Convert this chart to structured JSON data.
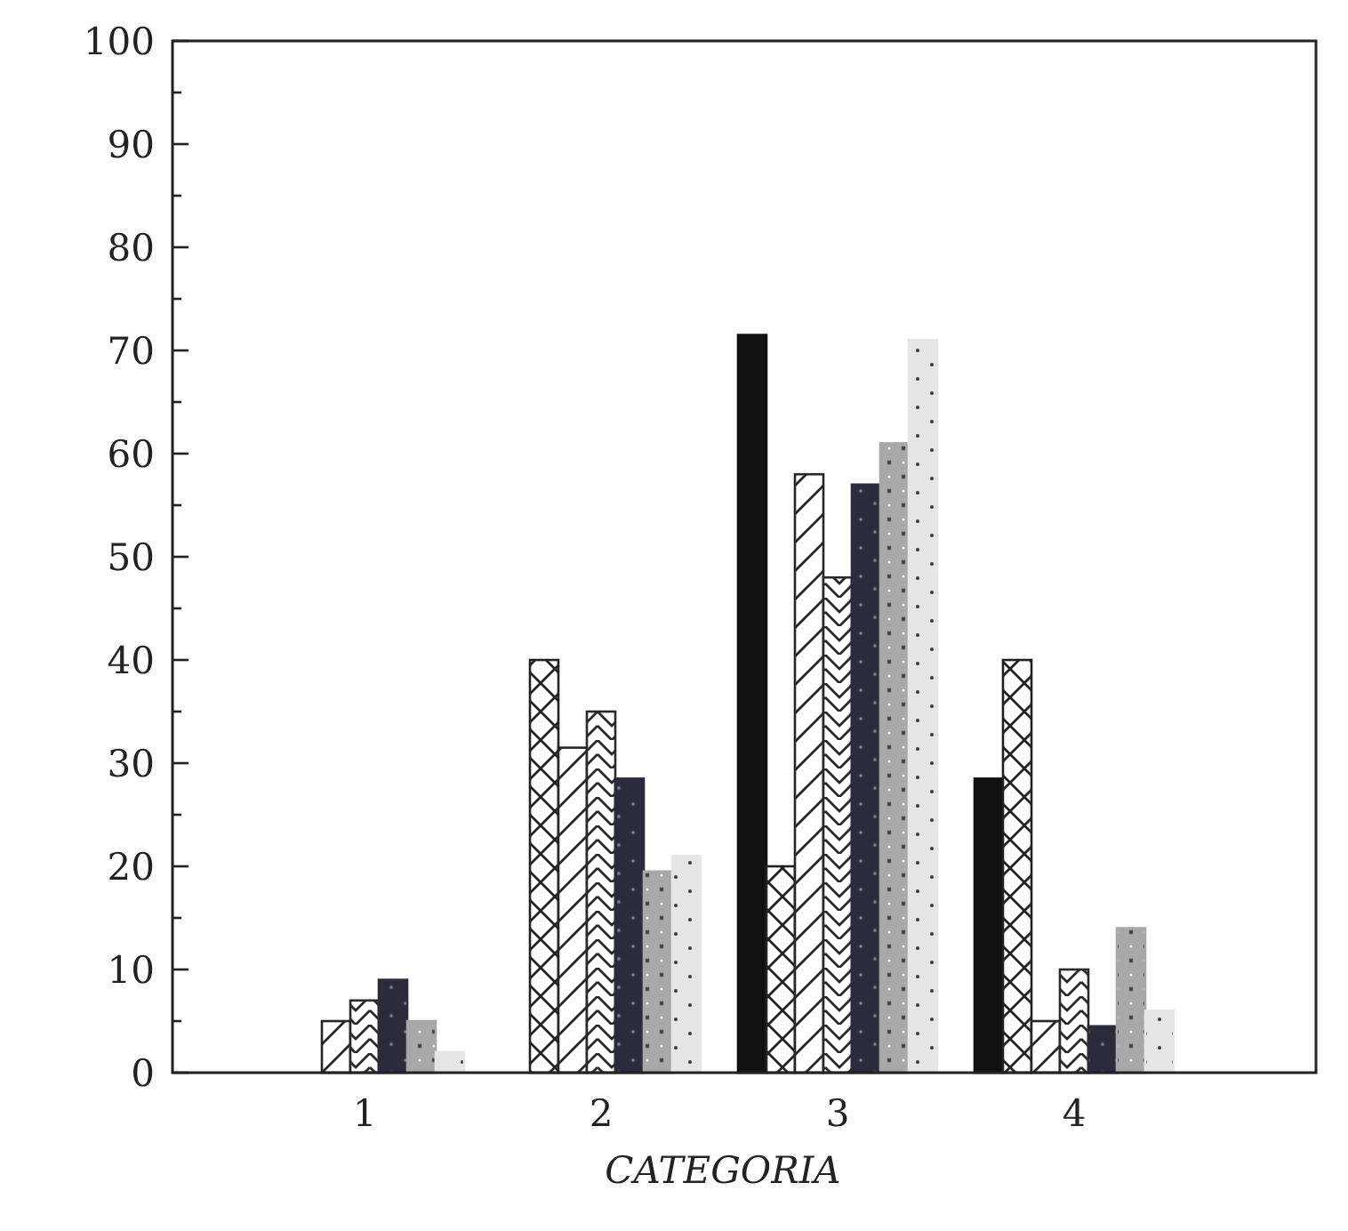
{
  "chart_data": {
    "type": "bar",
    "xlabel": "CATEGORIA",
    "categories": [
      "1",
      "2",
      "3",
      "4"
    ],
    "series": [
      {
        "color": "#111111",
        "values": [
          0,
          0,
          71.5,
          28.5
        ]
      },
      {
        "color": "#222222",
        "values": [
          0,
          40,
          20,
          40
        ]
      },
      {
        "color": "#262626",
        "values": [
          5,
          31.5,
          58,
          5
        ]
      },
      {
        "color": "#2a2a2a",
        "values": [
          7,
          35,
          48,
          10
        ]
      },
      {
        "color": "#2b2b3b",
        "values": [
          9,
          28.5,
          57,
          4.5
        ]
      },
      {
        "color": "#a8a8a8",
        "values": [
          5,
          19.5,
          61,
          14
        ]
      },
      {
        "color": "#e6e6e6",
        "values": [
          2,
          21,
          71,
          6
        ]
      }
    ],
    "ylim": [
      0,
      100
    ],
    "yticks": [
      0,
      {
        "value": 5,
        "label": null
      },
      10,
      {
        "value": 15,
        "label": null
      },
      20,
      {
        "value": 25,
        "label": null
      },
      30,
      {
        "value": 35,
        "label": null
      },
      40,
      {
        "value": 45,
        "label": null
      },
      50,
      {
        "value": 55,
        "label": null
      },
      60,
      {
        "value": 65,
        "label": null
      },
      70,
      {
        "value": 75,
        "label": null
      },
      80,
      {
        "value": 85,
        "label": null
      },
      90,
      {
        "value": 95,
        "label": null
      },
      100
    ],
    "grid": false
  }
}
